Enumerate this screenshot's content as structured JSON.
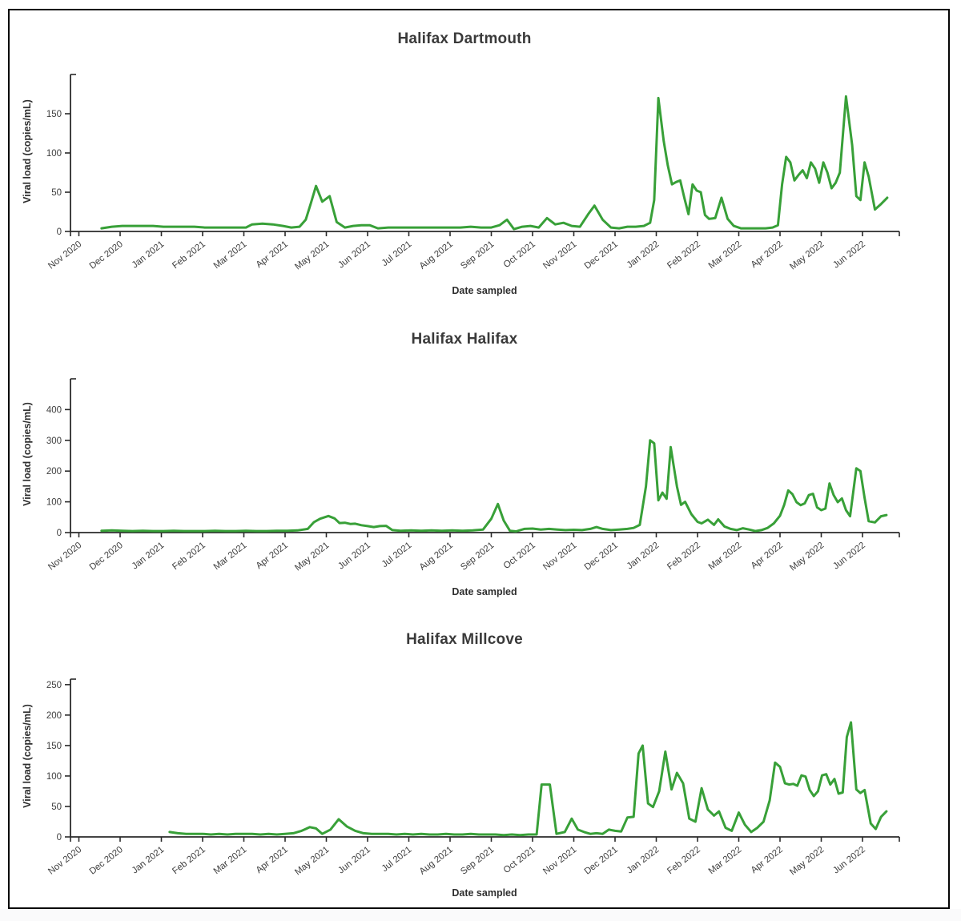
{
  "page": {
    "background_color": "#ffffff",
    "frame_border_color": "#050505",
    "line_color": "#38a038"
  },
  "chart_data": [
    {
      "type": "line",
      "title": "Halifax Dartmouth",
      "xlabel": "Date sampled",
      "ylabel": "Viral load (copies/mL)",
      "legend": "none",
      "grid": false,
      "line_color": "#38a038",
      "x_tick_labels": [
        "Nov 2020",
        "Dec 2020",
        "Jan 2021",
        "Feb 2021",
        "Mar 2021",
        "Apr 2021",
        "May 2021",
        "Jun 2021",
        "Jul 2021",
        "Aug 2021",
        "Sep 2021",
        "Oct 2021",
        "Nov 2021",
        "Dec 2021",
        "Jan 2022",
        "Feb 2022",
        "Mar 2022",
        "Apr 2022",
        "May 2022",
        "Jun 2022"
      ],
      "y_ticks": [
        0,
        50,
        100,
        150
      ],
      "ylim": [
        0,
        200
      ],
      "points_x_unit": "months_since_nov_2020",
      "points": [
        [
          0.55,
          4
        ],
        [
          0.8,
          6
        ],
        [
          1.05,
          7
        ],
        [
          1.3,
          7
        ],
        [
          1.55,
          7
        ],
        [
          1.8,
          7
        ],
        [
          2.05,
          6
        ],
        [
          2.3,
          6
        ],
        [
          2.55,
          6
        ],
        [
          2.8,
          6
        ],
        [
          3.05,
          5
        ],
        [
          3.3,
          5
        ],
        [
          3.55,
          5
        ],
        [
          3.8,
          5
        ],
        [
          4.05,
          5
        ],
        [
          4.2,
          9
        ],
        [
          4.45,
          10
        ],
        [
          4.7,
          9
        ],
        [
          4.95,
          7
        ],
        [
          5.15,
          5
        ],
        [
          5.35,
          6
        ],
        [
          5.5,
          15
        ],
        [
          5.62,
          35
        ],
        [
          5.75,
          58
        ],
        [
          5.9,
          38
        ],
        [
          6.08,
          45
        ],
        [
          6.25,
          12
        ],
        [
          6.45,
          5
        ],
        [
          6.65,
          7
        ],
        [
          6.85,
          8
        ],
        [
          7.05,
          8
        ],
        [
          7.25,
          4
        ],
        [
          7.5,
          5
        ],
        [
          7.75,
          5
        ],
        [
          8.0,
          5
        ],
        [
          8.25,
          5
        ],
        [
          8.5,
          5
        ],
        [
          8.75,
          5
        ],
        [
          9.0,
          5
        ],
        [
          9.25,
          5
        ],
        [
          9.5,
          6
        ],
        [
          9.75,
          5
        ],
        [
          10.0,
          5
        ],
        [
          10.2,
          8
        ],
        [
          10.38,
          15
        ],
        [
          10.55,
          3
        ],
        [
          10.75,
          6
        ],
        [
          10.95,
          7
        ],
        [
          11.15,
          5
        ],
        [
          11.35,
          17
        ],
        [
          11.55,
          9
        ],
        [
          11.75,
          11
        ],
        [
          11.95,
          7
        ],
        [
          12.15,
          6
        ],
        [
          12.35,
          22
        ],
        [
          12.5,
          33
        ],
        [
          12.7,
          15
        ],
        [
          12.9,
          5
        ],
        [
          13.1,
          4
        ],
        [
          13.3,
          6
        ],
        [
          13.5,
          6
        ],
        [
          13.7,
          7
        ],
        [
          13.85,
          11
        ],
        [
          13.95,
          40
        ],
        [
          14.05,
          170
        ],
        [
          14.18,
          115
        ],
        [
          14.28,
          84
        ],
        [
          14.38,
          60
        ],
        [
          14.48,
          63
        ],
        [
          14.58,
          65
        ],
        [
          14.68,
          43
        ],
        [
          14.78,
          22
        ],
        [
          14.88,
          60
        ],
        [
          14.98,
          52
        ],
        [
          15.08,
          50
        ],
        [
          15.18,
          21
        ],
        [
          15.28,
          16
        ],
        [
          15.43,
          17
        ],
        [
          15.58,
          43
        ],
        [
          15.73,
          16
        ],
        [
          15.88,
          7
        ],
        [
          16.05,
          4
        ],
        [
          16.25,
          4
        ],
        [
          16.45,
          4
        ],
        [
          16.65,
          4
        ],
        [
          16.82,
          5
        ],
        [
          16.95,
          8
        ],
        [
          17.05,
          60
        ],
        [
          17.15,
          95
        ],
        [
          17.25,
          88
        ],
        [
          17.35,
          65
        ],
        [
          17.45,
          72
        ],
        [
          17.55,
          78
        ],
        [
          17.65,
          68
        ],
        [
          17.75,
          88
        ],
        [
          17.85,
          80
        ],
        [
          17.95,
          62
        ],
        [
          18.05,
          88
        ],
        [
          18.15,
          75
        ],
        [
          18.25,
          55
        ],
        [
          18.35,
          62
        ],
        [
          18.45,
          75
        ],
        [
          18.6,
          172
        ],
        [
          18.75,
          110
        ],
        [
          18.85,
          45
        ],
        [
          18.95,
          40
        ],
        [
          19.05,
          88
        ],
        [
          19.15,
          70
        ],
        [
          19.3,
          28
        ],
        [
          19.45,
          35
        ],
        [
          19.6,
          43
        ]
      ]
    },
    {
      "type": "line",
      "title": "Halifax Halifax",
      "xlabel": "Date sampled",
      "ylabel": "Viral load (copies/mL)",
      "legend": "none",
      "grid": false,
      "line_color": "#38a038",
      "x_tick_labels": [
        "Nov 2020",
        "Dec 2020",
        "Jan 2021",
        "Feb 2021",
        "Mar 2021",
        "Apr 2021",
        "May 2021",
        "Jun 2021",
        "Jul 2021",
        "Aug 2021",
        "Sep 2021",
        "Oct 2021",
        "Nov 2021",
        "Dec 2021",
        "Jan 2022",
        "Feb 2022",
        "Mar 2022",
        "Apr 2022",
        "May 2022",
        "Jun 2022"
      ],
      "y_ticks": [
        0,
        100,
        200,
        300,
        400
      ],
      "ylim": [
        0,
        500
      ],
      "points_x_unit": "months_since_nov_2020",
      "points": [
        [
          0.55,
          6
        ],
        [
          0.8,
          7
        ],
        [
          1.05,
          6
        ],
        [
          1.3,
          5
        ],
        [
          1.55,
          6
        ],
        [
          1.8,
          5
        ],
        [
          2.05,
          5
        ],
        [
          2.3,
          6
        ],
        [
          2.55,
          5
        ],
        [
          2.8,
          5
        ],
        [
          3.05,
          5
        ],
        [
          3.3,
          6
        ],
        [
          3.55,
          5
        ],
        [
          3.8,
          5
        ],
        [
          4.05,
          6
        ],
        [
          4.3,
          5
        ],
        [
          4.55,
          5
        ],
        [
          4.8,
          6
        ],
        [
          5.05,
          6
        ],
        [
          5.3,
          7
        ],
        [
          5.55,
          12
        ],
        [
          5.7,
          34
        ],
        [
          5.85,
          45
        ],
        [
          6.05,
          54
        ],
        [
          6.2,
          46
        ],
        [
          6.32,
          31
        ],
        [
          6.45,
          32
        ],
        [
          6.58,
          28
        ],
        [
          6.7,
          29
        ],
        [
          6.85,
          24
        ],
        [
          7.0,
          21
        ],
        [
          7.15,
          18
        ],
        [
          7.3,
          21
        ],
        [
          7.45,
          22
        ],
        [
          7.6,
          8
        ],
        [
          7.8,
          6
        ],
        [
          8.05,
          7
        ],
        [
          8.3,
          6
        ],
        [
          8.55,
          7
        ],
        [
          8.8,
          6
        ],
        [
          9.05,
          7
        ],
        [
          9.3,
          6
        ],
        [
          9.55,
          7
        ],
        [
          9.8,
          10
        ],
        [
          10.0,
          45
        ],
        [
          10.16,
          93
        ],
        [
          10.3,
          39
        ],
        [
          10.45,
          6
        ],
        [
          10.6,
          4
        ],
        [
          10.8,
          12
        ],
        [
          11.0,
          13
        ],
        [
          11.2,
          10
        ],
        [
          11.4,
          12
        ],
        [
          11.6,
          10
        ],
        [
          11.8,
          8
        ],
        [
          12.0,
          9
        ],
        [
          12.2,
          8
        ],
        [
          12.4,
          12
        ],
        [
          12.55,
          18
        ],
        [
          12.7,
          12
        ],
        [
          12.9,
          8
        ],
        [
          13.1,
          10
        ],
        [
          13.3,
          12
        ],
        [
          13.45,
          15
        ],
        [
          13.6,
          25
        ],
        [
          13.75,
          150
        ],
        [
          13.85,
          300
        ],
        [
          13.95,
          290
        ],
        [
          14.05,
          105
        ],
        [
          14.15,
          130
        ],
        [
          14.25,
          110
        ],
        [
          14.35,
          278
        ],
        [
          14.5,
          150
        ],
        [
          14.6,
          90
        ],
        [
          14.7,
          100
        ],
        [
          14.85,
          60
        ],
        [
          15.0,
          35
        ],
        [
          15.1,
          30
        ],
        [
          15.25,
          42
        ],
        [
          15.4,
          25
        ],
        [
          15.5,
          43
        ],
        [
          15.65,
          20
        ],
        [
          15.8,
          12
        ],
        [
          15.95,
          8
        ],
        [
          16.1,
          14
        ],
        [
          16.25,
          10
        ],
        [
          16.4,
          5
        ],
        [
          16.55,
          8
        ],
        [
          16.7,
          15
        ],
        [
          16.85,
          30
        ],
        [
          17.0,
          55
        ],
        [
          17.1,
          90
        ],
        [
          17.2,
          137
        ],
        [
          17.3,
          125
        ],
        [
          17.4,
          99
        ],
        [
          17.5,
          89
        ],
        [
          17.6,
          95
        ],
        [
          17.7,
          122
        ],
        [
          17.8,
          126
        ],
        [
          17.9,
          82
        ],
        [
          18.0,
          73
        ],
        [
          18.1,
          78
        ],
        [
          18.2,
          160
        ],
        [
          18.3,
          122
        ],
        [
          18.4,
          99
        ],
        [
          18.5,
          111
        ],
        [
          18.6,
          73
        ],
        [
          18.7,
          53
        ],
        [
          18.85,
          209
        ],
        [
          18.95,
          200
        ],
        [
          19.05,
          113
        ],
        [
          19.15,
          37
        ],
        [
          19.3,
          33
        ],
        [
          19.45,
          53
        ],
        [
          19.58,
          57
        ]
      ]
    },
    {
      "type": "line",
      "title": "Halifax Millcove",
      "xlabel": "Date sampled",
      "ylabel": "Viral load (copies/mL)",
      "legend": "none",
      "grid": false,
      "line_color": "#38a038",
      "x_tick_labels": [
        "Nov 2020",
        "Dec 2020",
        "Jan 2021",
        "Feb 2021",
        "Mar 2021",
        "Apr 2021",
        "May 2021",
        "Jun 2021",
        "Jul 2021",
        "Aug 2021",
        "Sep 2021",
        "Oct 2021",
        "Nov 2021",
        "Dec 2021",
        "Jan 2022",
        "Feb 2022",
        "Mar 2022",
        "Apr 2022",
        "May 2022",
        "Jun 2022"
      ],
      "y_ticks": [
        0,
        50,
        100,
        150,
        200,
        250
      ],
      "ylim": [
        0,
        259
      ],
      "points_x_unit": "months_since_nov_2020",
      "points": [
        [
          2.2,
          8
        ],
        [
          2.4,
          6
        ],
        [
          2.6,
          5
        ],
        [
          2.8,
          5
        ],
        [
          3.0,
          5
        ],
        [
          3.2,
          4
        ],
        [
          3.4,
          5
        ],
        [
          3.6,
          4
        ],
        [
          3.8,
          5
        ],
        [
          4.0,
          5
        ],
        [
          4.2,
          5
        ],
        [
          4.4,
          4
        ],
        [
          4.6,
          5
        ],
        [
          4.8,
          4
        ],
        [
          5.0,
          5
        ],
        [
          5.2,
          6
        ],
        [
          5.4,
          10
        ],
        [
          5.6,
          16
        ],
        [
          5.75,
          14
        ],
        [
          5.9,
          5
        ],
        [
          6.1,
          12
        ],
        [
          6.3,
          29
        ],
        [
          6.5,
          17
        ],
        [
          6.7,
          10
        ],
        [
          6.9,
          6
        ],
        [
          7.1,
          5
        ],
        [
          7.3,
          5
        ],
        [
          7.5,
          5
        ],
        [
          7.7,
          4
        ],
        [
          7.9,
          5
        ],
        [
          8.1,
          4
        ],
        [
          8.3,
          5
        ],
        [
          8.5,
          4
        ],
        [
          8.7,
          4
        ],
        [
          8.9,
          5
        ],
        [
          9.1,
          4
        ],
        [
          9.3,
          4
        ],
        [
          9.5,
          5
        ],
        [
          9.7,
          4
        ],
        [
          9.9,
          4
        ],
        [
          10.1,
          4
        ],
        [
          10.3,
          3
        ],
        [
          10.5,
          4
        ],
        [
          10.7,
          3
        ],
        [
          10.9,
          4
        ],
        [
          11.1,
          4
        ],
        [
          11.22,
          86
        ],
        [
          11.42,
          86
        ],
        [
          11.58,
          5
        ],
        [
          11.78,
          8
        ],
        [
          11.95,
          30
        ],
        [
          12.1,
          12
        ],
        [
          12.25,
          8
        ],
        [
          12.4,
          5
        ],
        [
          12.55,
          6
        ],
        [
          12.7,
          5
        ],
        [
          12.85,
          12
        ],
        [
          13.0,
          10
        ],
        [
          13.15,
          9
        ],
        [
          13.3,
          32
        ],
        [
          13.45,
          33
        ],
        [
          13.57,
          137
        ],
        [
          13.67,
          150
        ],
        [
          13.8,
          55
        ],
        [
          13.92,
          49
        ],
        [
          14.07,
          75
        ],
        [
          14.22,
          140
        ],
        [
          14.37,
          78
        ],
        [
          14.5,
          105
        ],
        [
          14.65,
          88
        ],
        [
          14.8,
          30
        ],
        [
          14.95,
          25
        ],
        [
          15.1,
          80
        ],
        [
          15.25,
          45
        ],
        [
          15.4,
          35
        ],
        [
          15.52,
          42
        ],
        [
          15.68,
          15
        ],
        [
          15.83,
          10
        ],
        [
          16.0,
          40
        ],
        [
          16.15,
          20
        ],
        [
          16.3,
          8
        ],
        [
          16.45,
          15
        ],
        [
          16.6,
          25
        ],
        [
          16.75,
          60
        ],
        [
          16.88,
          122
        ],
        [
          17.0,
          115
        ],
        [
          17.12,
          88
        ],
        [
          17.22,
          86
        ],
        [
          17.32,
          87
        ],
        [
          17.42,
          84
        ],
        [
          17.52,
          101
        ],
        [
          17.62,
          99
        ],
        [
          17.72,
          77
        ],
        [
          17.82,
          67
        ],
        [
          17.92,
          75
        ],
        [
          18.02,
          101
        ],
        [
          18.12,
          103
        ],
        [
          18.22,
          86
        ],
        [
          18.32,
          95
        ],
        [
          18.42,
          71
        ],
        [
          18.52,
          73
        ],
        [
          18.62,
          164
        ],
        [
          18.72,
          188
        ],
        [
          18.85,
          78
        ],
        [
          18.95,
          72
        ],
        [
          19.05,
          77
        ],
        [
          19.2,
          22
        ],
        [
          19.32,
          13
        ],
        [
          19.45,
          33
        ],
        [
          19.58,
          42
        ]
      ]
    }
  ]
}
